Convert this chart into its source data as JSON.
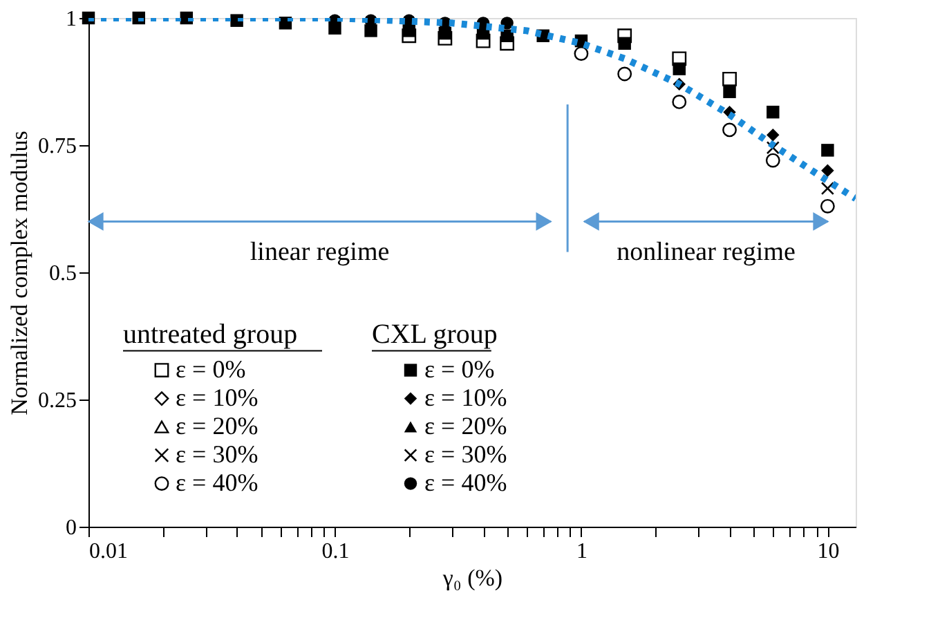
{
  "chart_data": {
    "type": "scatter",
    "xlabel": "γ₀ (%)",
    "ylabel": "Normalized complex modulus",
    "log": "x",
    "x": [
      0.01,
      0.016,
      0.025,
      0.04,
      0.063,
      0.1,
      0.14,
      0.2,
      0.28,
      0.4,
      0.5,
      0.7,
      1,
      1.5,
      2.5,
      4,
      6,
      10
    ],
    "xlim": [
      0.01,
      13
    ],
    "ylim": [
      0,
      1
    ],
    "xticks": [
      0.01,
      {
        "value": 0.02,
        "label": null
      },
      {
        "value": 0.03,
        "label": null
      },
      {
        "value": 0.04,
        "label": null
      },
      {
        "value": 0.05,
        "label": null
      },
      {
        "value": 0.06,
        "label": null
      },
      {
        "value": 0.07,
        "label": null
      },
      {
        "value": 0.08,
        "label": null
      },
      {
        "value": 0.09,
        "label": null
      },
      0.1,
      {
        "value": 0.2,
        "label": null
      },
      {
        "value": 0.3,
        "label": null
      },
      {
        "value": 0.4,
        "label": null
      },
      {
        "value": 0.5,
        "label": null
      },
      {
        "value": 0.6,
        "label": null
      },
      {
        "value": 0.7,
        "label": null
      },
      {
        "value": 0.8,
        "label": null
      },
      {
        "value": 0.9,
        "label": null
      },
      1,
      {
        "value": 2,
        "label": null
      },
      {
        "value": 3,
        "label": null
      },
      {
        "value": 4,
        "label": null
      },
      {
        "value": 5,
        "label": null
      },
      {
        "value": 6,
        "label": null
      },
      {
        "value": 7,
        "label": null
      },
      {
        "value": 8,
        "label": null
      },
      {
        "value": 9,
        "label": null
      },
      10
    ],
    "yticks": [
      0,
      0.25,
      0.5,
      0.75,
      1
    ],
    "grid": false,
    "legend": "bottom left",
    "annotations": [
      "untreated group",
      "CXL group",
      "linear regime",
      "nonlinear regime"
    ],
    "series": [
      {
        "name": "ε = 0%",
        "marker": "square",
        "color": "#000000",
        "values": [
          null,
          null,
          null,
          null,
          null,
          null,
          null,
          0.965,
          0.96,
          0.955,
          0.95,
          null,
          null,
          0.965,
          0.92,
          0.88,
          null,
          null
        ]
      },
      {
        "name": "ε = 10%",
        "marker": "diamond",
        "color": "#000000",
        "values": [
          null,
          null,
          null,
          null,
          null,
          null,
          null,
          null,
          null,
          null,
          null,
          null,
          null,
          null,
          null,
          null,
          null,
          null
        ]
      },
      {
        "name": "ε = 20%",
        "marker": "triangle",
        "color": "#000000",
        "values": [
          null,
          null,
          null,
          null,
          null,
          null,
          null,
          null,
          null,
          null,
          null,
          null,
          null,
          null,
          null,
          null,
          null,
          null
        ]
      },
      {
        "name": "ε = 30%",
        "marker": "cross",
        "color": "#000000",
        "values": [
          null,
          null,
          null,
          null,
          null,
          null,
          null,
          null,
          null,
          null,
          null,
          null,
          null,
          null,
          null,
          null,
          null,
          null
        ]
      },
      {
        "name": "ε = 40%",
        "marker": "circle",
        "color": "#000000",
        "values": [
          null,
          null,
          null,
          null,
          null,
          null,
          null,
          null,
          null,
          null,
          null,
          null,
          0.93,
          0.89,
          0.835,
          0.78,
          0.72,
          0.63
        ]
      },
      {
        "name": "ε = 0%",
        "marker": "square",
        "color": "#000000",
        "values": [
          1,
          1,
          1,
          0.995,
          0.99,
          0.98,
          0.975,
          0.975,
          0.97,
          0.97,
          0.965,
          0.965,
          0.955,
          0.95,
          0.9,
          0.855,
          0.815,
          0.74
        ]
      },
      {
        "name": "ε = 10%",
        "marker": "diamond",
        "color": "#000000",
        "values": [
          null,
          null,
          null,
          null,
          null,
          null,
          null,
          null,
          null,
          null,
          null,
          null,
          null,
          null,
          0.87,
          0.815,
          0.77,
          0.7
        ]
      },
      {
        "name": "ε = 20%",
        "marker": "triangle",
        "color": "#000000",
        "values": [
          null,
          null,
          null,
          null,
          null,
          null,
          null,
          null,
          null,
          null,
          null,
          null,
          null,
          null,
          null,
          null,
          null,
          null
        ]
      },
      {
        "name": "ε = 30%",
        "marker": "cross",
        "color": "#000000",
        "values": [
          null,
          null,
          null,
          null,
          null,
          null,
          null,
          null,
          null,
          null,
          null,
          null,
          null,
          null,
          null,
          null,
          0.745,
          0.665
        ]
      },
      {
        "name": "ε = 40%",
        "marker": "circle",
        "color": "#000000",
        "values": [
          null,
          null,
          null,
          null,
          null,
          0.995,
          0.995,
          0.995,
          0.99,
          0.99,
          0.99,
          null,
          null,
          null,
          null,
          null,
          null,
          null
        ]
      },
      {
        "type": "line",
        "color": "#1a8ad8",
        "line_style": "dotted",
        "marker": "none",
        "x": [
          0.01,
          0.03,
          0.1,
          0.3,
          0.6,
          1,
          1.5,
          2.5,
          4,
          6,
          10,
          13
        ],
        "values": [
          1,
          1,
          1,
          0.99,
          0.975,
          0.95,
          0.92,
          0.87,
          0.81,
          0.75,
          0.68,
          0.645
        ]
      }
    ],
    "ref_lines": [
      {
        "axis": "x",
        "value": 0.88,
        "color": "#5b9bd5"
      }
    ]
  }
}
